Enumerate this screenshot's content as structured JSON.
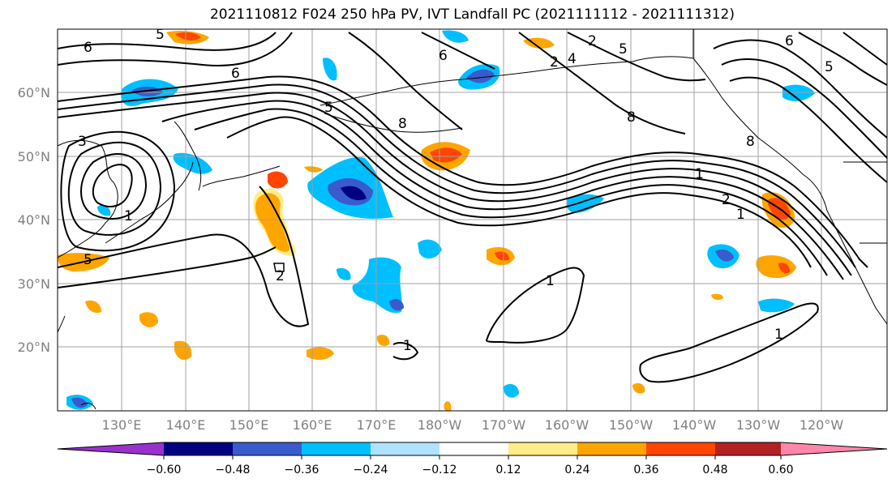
{
  "title": "2021110812 F024 250 hPa PV, IVT Landfall PC (2021111112 - 2021111312)",
  "map": {
    "lat_labels": [
      "60°N",
      "50°N",
      "40°N",
      "30°N",
      "20°N"
    ],
    "lon_labels": [
      "130°E",
      "140°E",
      "150°E",
      "160°E",
      "170°E",
      "180°W",
      "170°W",
      "160°W",
      "150°W",
      "140°W",
      "130°W",
      "120°W"
    ],
    "contour_labels": [
      "6",
      "6",
      "5",
      "3",
      "2",
      "1",
      "5",
      "8",
      "8",
      "2",
      "1",
      "1",
      "2",
      "1",
      "6",
      "5",
      "5",
      "8",
      "1",
      "2",
      "4",
      "5",
      "6",
      "1"
    ]
  },
  "colorbar": {
    "tick_labels": [
      "−0.60",
      "−0.48",
      "−0.36",
      "−0.24",
      "−0.12",
      "0.12",
      "0.24",
      "0.36",
      "0.48",
      "0.60"
    ],
    "colors": [
      "#9932cc",
      "#000080",
      "#3a5bcc",
      "#00bfff",
      "#b0e2ff",
      "#ffffff",
      "#ffec8b",
      "#ffa500",
      "#ff4500",
      "#b22222",
      "#ff88aa"
    ]
  }
}
